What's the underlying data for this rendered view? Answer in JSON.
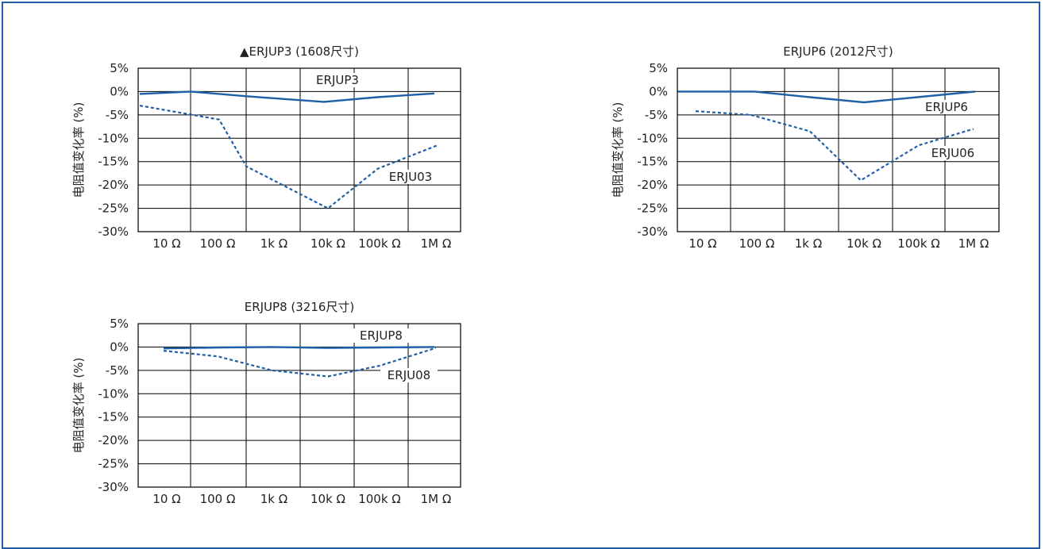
{
  "colors": {
    "frame": "#1f5fa6",
    "series": "#1f5fa6",
    "grid": "#000000"
  },
  "y_ticks": [
    "5%",
    "0%",
    "-5%",
    "-10%",
    "-15%",
    "-20%",
    "-25%",
    "-30%"
  ],
  "x_ticks": [
    "10 Ω",
    "100 Ω",
    "1k Ω",
    "10k Ω",
    "100k Ω",
    "1M Ω"
  ],
  "chart_data": [
    {
      "type": "line",
      "title": "▲ERJUP3 (1608尺寸)",
      "ylabel": "电阻值变化率 (%)",
      "ylim": [
        -30,
        5
      ],
      "x": [
        "10 Ω",
        "100 Ω",
        "1k Ω",
        "10k Ω",
        "100k Ω",
        "1M Ω"
      ],
      "series": [
        {
          "name": "ERJUP3",
          "style": "solid",
          "values": [
            -0.5,
            0,
            -1,
            -2.2,
            -1.2,
            -0.4
          ]
        },
        {
          "name": "ERJU03",
          "style": "dashed",
          "values": [
            -3,
            -6,
            -16,
            -25,
            -16.5,
            -11.5
          ]
        }
      ]
    },
    {
      "type": "line",
      "title": "ERJUP6 (2012尺寸)",
      "ylabel": "电阻值变化率 (%)",
      "ylim": [
        -30,
        5
      ],
      "x": [
        "10 Ω",
        "100 Ω",
        "1k Ω",
        "10k Ω",
        "100k Ω",
        "1M Ω"
      ],
      "series": [
        {
          "name": "ERJUP6",
          "style": "solid",
          "values": [
            0,
            0,
            -1.2,
            -2.3,
            -1.2,
            0
          ]
        },
        {
          "name": "ERJU06",
          "style": "dashed",
          "values": [
            -4.2,
            -5,
            -8.5,
            -19,
            -11.5,
            -8
          ]
        }
      ]
    },
    {
      "type": "line",
      "title": "ERJUP8 (3216尺寸)",
      "ylabel": "电阻值变化率 (%)",
      "ylim": [
        -30,
        5
      ],
      "x": [
        "10 Ω",
        "100 Ω",
        "1k Ω",
        "10k Ω",
        "100k Ω",
        "1M Ω"
      ],
      "series": [
        {
          "name": "ERJUP8",
          "style": "solid",
          "values": [
            -0.3,
            -0.1,
            0,
            -0.2,
            -0.1,
            0
          ]
        },
        {
          "name": "ERJU08",
          "style": "dashed",
          "values": [
            -0.8,
            -2,
            -5,
            -6.3,
            -4,
            -0.2
          ]
        }
      ]
    }
  ]
}
